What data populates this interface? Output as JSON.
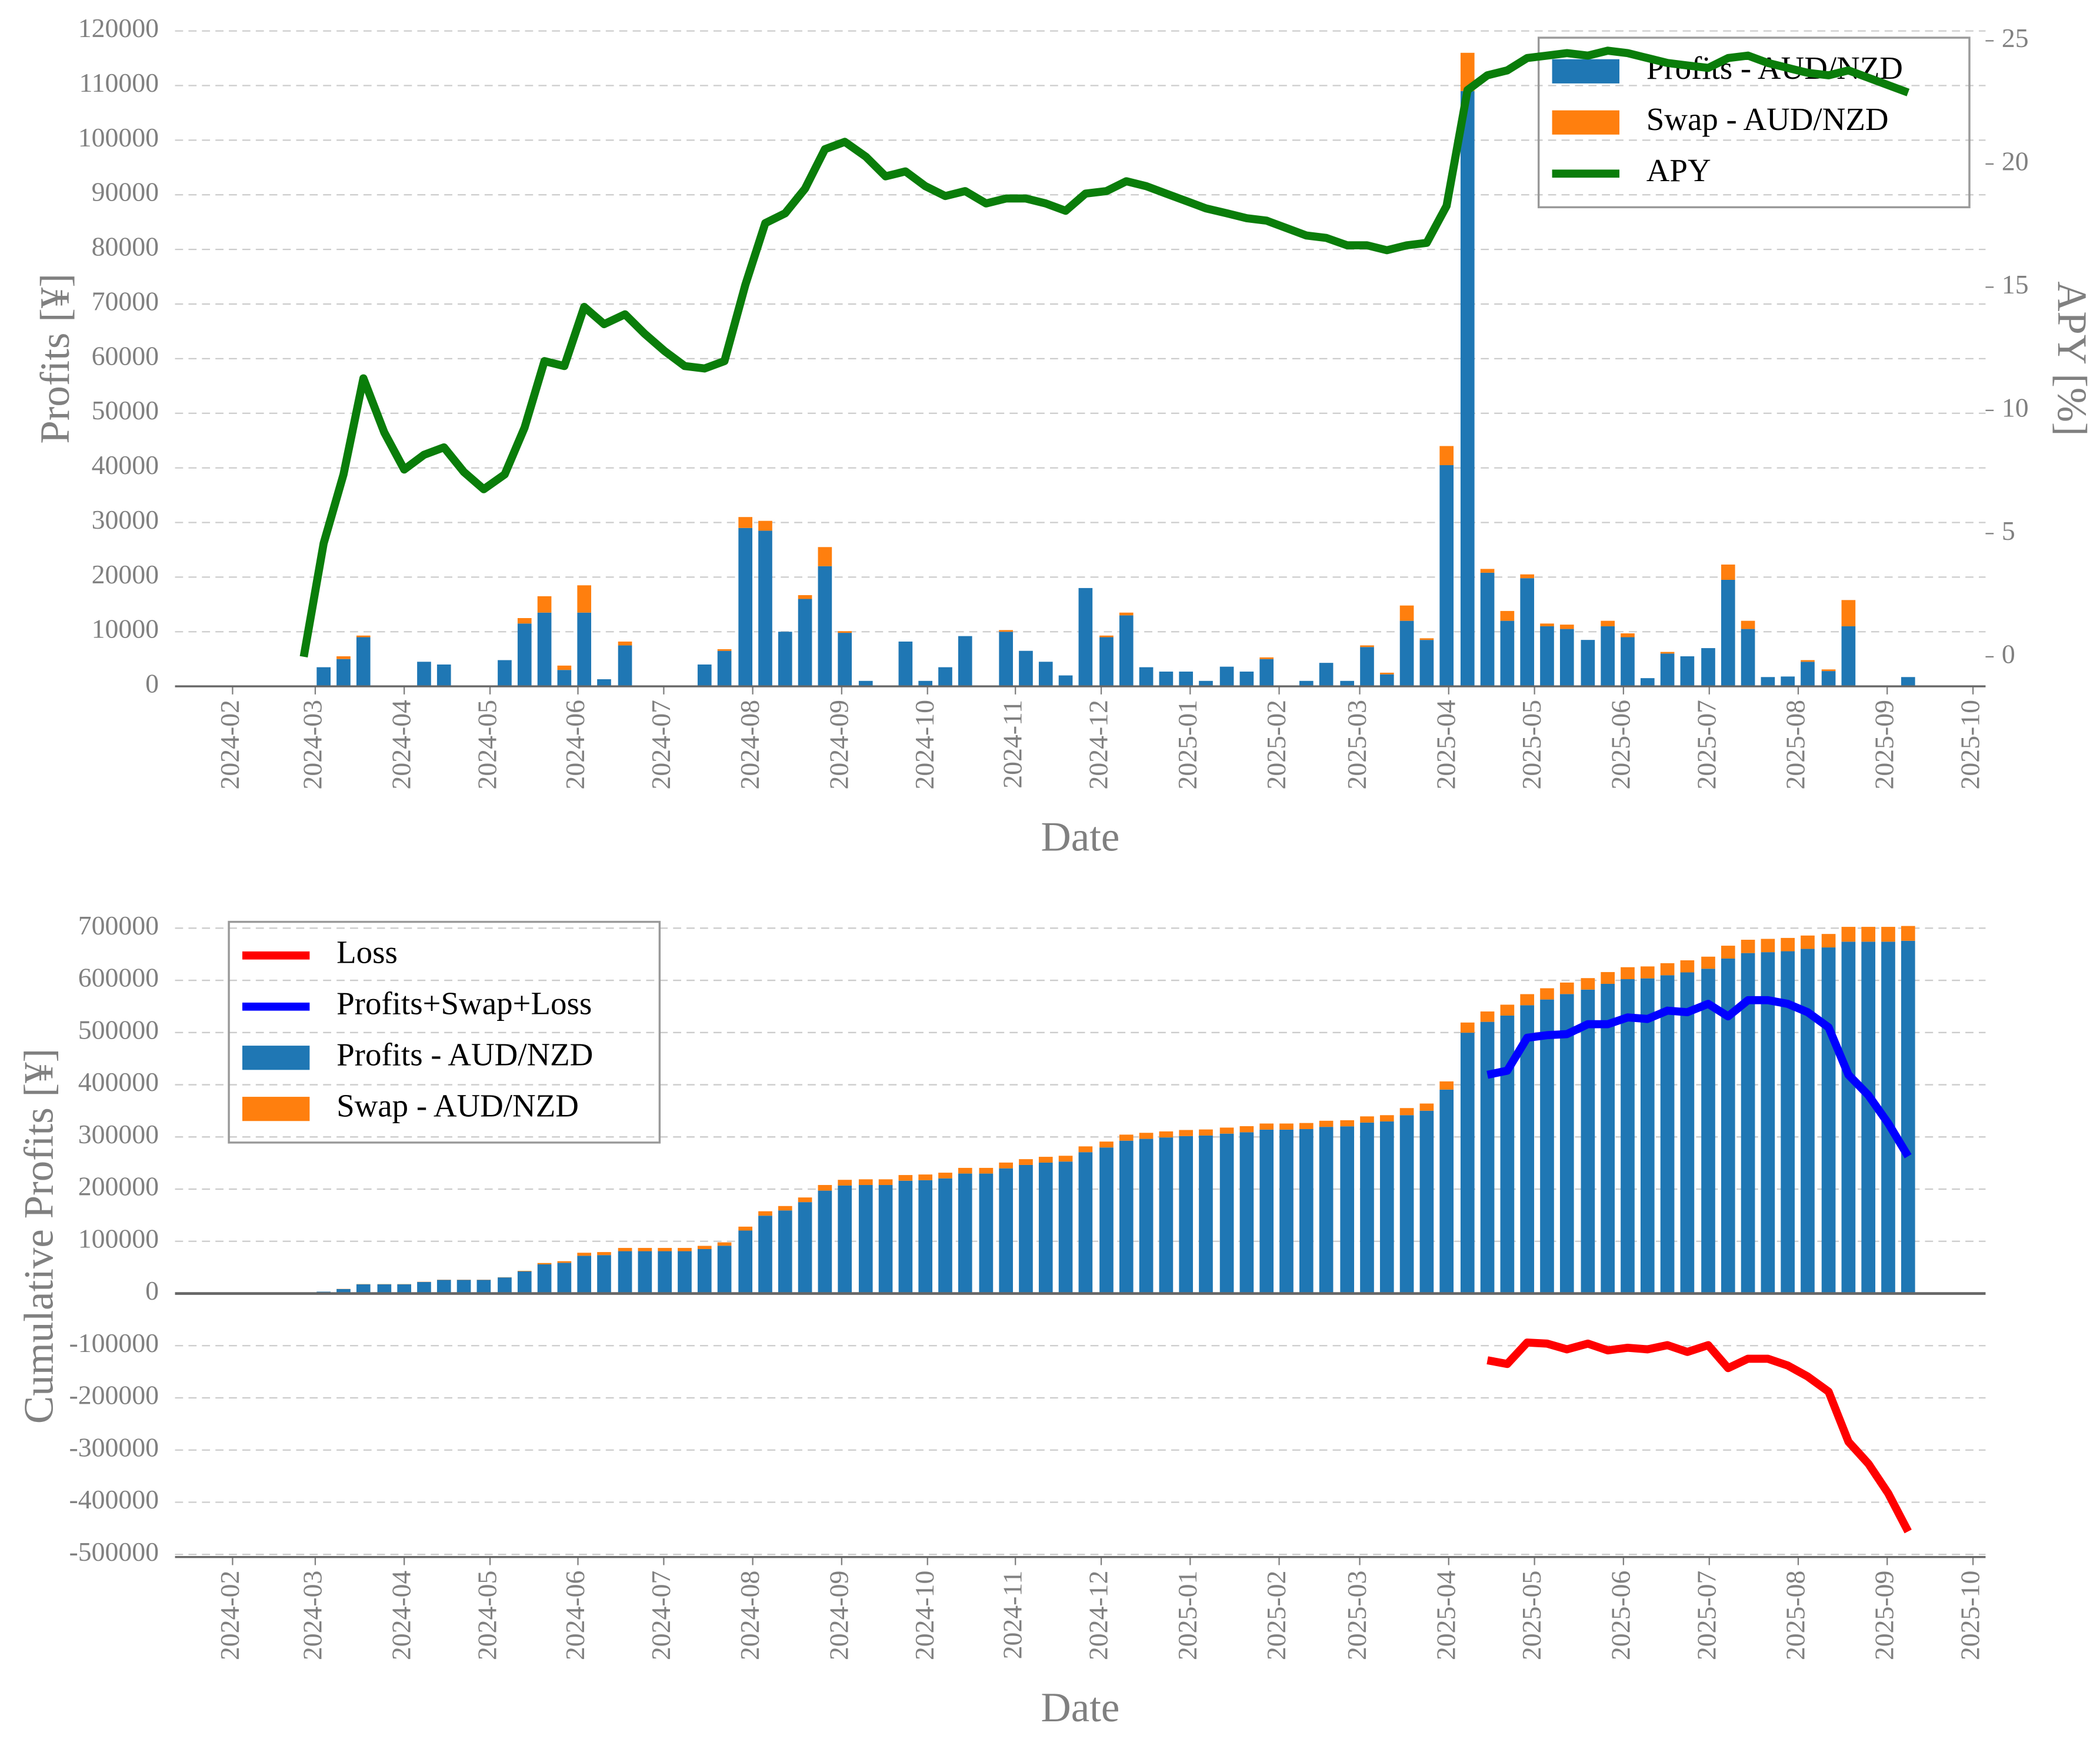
{
  "chart_data": [
    {
      "type": "bar",
      "stacked": true,
      "xlabel": "Date",
      "ylabel": "Profits [¥]",
      "y2label": "APY [%]",
      "x": [
        2024.153,
        2024.172,
        2024.191,
        2024.21,
        2024.23,
        2024.249,
        2024.268,
        2024.287,
        2024.306,
        2024.325,
        2024.345,
        2024.364,
        2024.383,
        2024.402,
        2024.421,
        2024.44,
        2024.46,
        2024.479,
        2024.498,
        2024.517,
        2024.536,
        2024.555,
        2024.575,
        2024.594,
        2024.613,
        2024.632,
        2024.651,
        2024.67,
        2024.69,
        2024.709,
        2024.728,
        2024.747,
        2024.766,
        2024.785,
        2024.805,
        2024.824,
        2024.843,
        2024.862,
        2024.881,
        2024.9,
        2024.92,
        2024.939,
        2024.958,
        2024.977,
        2024.996,
        2025.015,
        2025.035,
        2025.054,
        2025.073,
        2025.092,
        2025.111,
        2025.13,
        2025.15,
        2025.169,
        2025.188,
        2025.207,
        2025.226,
        2025.245,
        2025.265,
        2025.284,
        2025.303,
        2025.322,
        2025.341,
        2025.36,
        2025.38,
        2025.399,
        2025.418,
        2025.437,
        2025.456,
        2025.475,
        2025.495,
        2025.514,
        2025.533,
        2025.552,
        2025.571,
        2025.59,
        2025.61,
        2025.629,
        2025.648,
        2025.667,
        2025.686
      ],
      "series": [
        {
          "name": "Profits - AUD/NZD",
          "type": "bar",
          "color": "#1f77b4",
          "values": [
            0,
            3500,
            5000,
            9000,
            0,
            0,
            4500,
            4000,
            0,
            0,
            4800,
            11500,
            13500,
            3000,
            13500,
            1300,
            7500,
            0,
            0,
            0,
            4000,
            6500,
            29000,
            28500,
            10000,
            16000,
            22000,
            9800,
            1000,
            0,
            8200,
            1000,
            3500,
            9200,
            0,
            10000,
            6500,
            4500,
            2000,
            18000,
            9000,
            13000,
            3500,
            2700,
            2700,
            1000,
            3600,
            2700,
            5000,
            0,
            1000,
            4300,
            1000,
            7200,
            2200,
            12000,
            8500,
            40500,
            109000,
            20800,
            12000,
            19800,
            11000,
            10500,
            8500,
            11000,
            9000,
            1500,
            6000,
            5500,
            7000,
            19500,
            10500,
            1700,
            1800,
            4500,
            2800,
            11000,
            0,
            0,
            1700
          ]
        },
        {
          "name": "Swap - AUD/NZD",
          "type": "bar",
          "color": "#ff7f0e",
          "values": [
            0,
            0,
            500,
            300,
            0,
            0,
            0,
            0,
            0,
            0,
            0,
            1000,
            3000,
            800,
            5000,
            0,
            700,
            0,
            0,
            0,
            0,
            300,
            2000,
            1800,
            0,
            700,
            3500,
            300,
            0,
            0,
            0,
            0,
            0,
            0,
            0,
            300,
            0,
            0,
            0,
            0,
            300,
            500,
            0,
            0,
            0,
            0,
            0,
            0,
            300,
            0,
            0,
            0,
            0,
            300,
            300,
            2800,
            300,
            3500,
            7000,
            700,
            1800,
            700,
            500,
            800,
            0,
            1000,
            700,
            0,
            300,
            0,
            0,
            2800,
            1500,
            0,
            0,
            300,
            300,
            4800,
            0,
            0,
            0
          ]
        },
        {
          "name": "APY",
          "type": "line",
          "axis": "y2",
          "color": "#0a7d0a",
          "values": [
            0,
            4.6,
            7.4,
            11.3,
            9.1,
            7.6,
            8.2,
            8.5,
            7.5,
            6.8,
            7.4,
            9.3,
            12.0,
            11.8,
            14.2,
            13.5,
            13.9,
            13.1,
            12.4,
            11.8,
            11.7,
            12.0,
            15.1,
            17.6,
            18.0,
            19.0,
            20.6,
            20.9,
            20.3,
            19.5,
            19.7,
            19.1,
            18.7,
            18.9,
            18.4,
            18.6,
            18.6,
            18.4,
            18.1,
            18.8,
            18.9,
            19.3,
            19.1,
            18.8,
            18.5,
            18.2,
            18.0,
            17.8,
            17.7,
            17.4,
            17.1,
            17.0,
            16.7,
            16.7,
            16.5,
            16.7,
            16.8,
            18.3,
            23.0,
            23.6,
            23.8,
            24.3,
            24.4,
            24.5,
            24.4,
            24.6,
            24.5,
            24.3,
            24.1,
            24.0,
            23.9,
            24.3,
            24.4,
            24.1,
            23.9,
            23.7,
            23.6,
            23.8,
            23.5,
            23.2,
            22.9
          ]
        }
      ],
      "xlim": [
        2024.03,
        2025.76
      ],
      "xticks": [
        {
          "value": 2024.085,
          "label": "2024-02"
        },
        {
          "value": 2024.164,
          "label": "2024-03"
        },
        {
          "value": 2024.249,
          "label": "2024-04"
        },
        {
          "value": 2024.331,
          "label": "2024-05"
        },
        {
          "value": 2024.415,
          "label": "2024-06"
        },
        {
          "value": 2024.497,
          "label": "2024-07"
        },
        {
          "value": 2024.582,
          "label": "2024-08"
        },
        {
          "value": 2024.667,
          "label": "2024-09"
        },
        {
          "value": 2024.749,
          "label": "2024-10"
        },
        {
          "value": 2024.833,
          "label": "2024-11"
        },
        {
          "value": 2024.915,
          "label": "2024-12"
        },
        {
          "value": 2025.0,
          "label": "2025-01"
        },
        {
          "value": 2025.085,
          "label": "2025-02"
        },
        {
          "value": 2025.162,
          "label": "2025-03"
        },
        {
          "value": 2025.247,
          "label": "2025-04"
        },
        {
          "value": 2025.329,
          "label": "2025-05"
        },
        {
          "value": 2025.414,
          "label": "2025-06"
        },
        {
          "value": 2025.496,
          "label": "2025-07"
        },
        {
          "value": 2025.581,
          "label": "2025-08"
        },
        {
          "value": 2025.666,
          "label": "2025-09"
        },
        {
          "value": 2025.748,
          "label": "2025-10"
        }
      ],
      "ylim": [
        0,
        120000
      ],
      "yticks": [
        0,
        10000,
        20000,
        30000,
        40000,
        50000,
        60000,
        70000,
        80000,
        90000,
        100000,
        110000,
        120000
      ],
      "y2lim": [
        -1.2,
        25.4
      ],
      "y2ticks": [
        0,
        5,
        10,
        15,
        20,
        25
      ],
      "grid": true,
      "legend": "upper right"
    },
    {
      "type": "bar",
      "stacked": true,
      "xlabel": "Date",
      "ylabel": "Cumulative Profits [¥]",
      "x": [
        2024.153,
        2024.172,
        2024.191,
        2024.21,
        2024.23,
        2024.249,
        2024.268,
        2024.287,
        2024.306,
        2024.325,
        2024.345,
        2024.364,
        2024.383,
        2024.402,
        2024.421,
        2024.44,
        2024.46,
        2024.479,
        2024.498,
        2024.517,
        2024.536,
        2024.555,
        2024.575,
        2024.594,
        2024.613,
        2024.632,
        2024.651,
        2024.67,
        2024.69,
        2024.709,
        2024.728,
        2024.747,
        2024.766,
        2024.785,
        2024.805,
        2024.824,
        2024.843,
        2024.862,
        2024.881,
        2024.9,
        2024.92,
        2024.939,
        2024.958,
        2024.977,
        2024.996,
        2025.015,
        2025.035,
        2025.054,
        2025.073,
        2025.092,
        2025.111,
        2025.13,
        2025.15,
        2025.169,
        2025.188,
        2025.207,
        2025.226,
        2025.245,
        2025.265,
        2025.284,
        2025.303,
        2025.322,
        2025.341,
        2025.36,
        2025.38,
        2025.399,
        2025.418,
        2025.437,
        2025.456,
        2025.475,
        2025.495,
        2025.514,
        2025.533,
        2025.552,
        2025.571,
        2025.59,
        2025.61,
        2025.629,
        2025.648,
        2025.667,
        2025.686
      ],
      "series": [
        {
          "name": "Loss",
          "type": "line",
          "color": "#ff0000",
          "values": [
            null,
            null,
            null,
            null,
            null,
            null,
            null,
            null,
            null,
            null,
            null,
            null,
            null,
            null,
            null,
            null,
            null,
            null,
            null,
            null,
            null,
            null,
            null,
            null,
            null,
            null,
            null,
            null,
            null,
            null,
            null,
            null,
            null,
            null,
            null,
            null,
            null,
            null,
            null,
            null,
            null,
            null,
            null,
            null,
            null,
            null,
            null,
            null,
            null,
            null,
            null,
            null,
            null,
            null,
            null,
            null,
            null,
            null,
            null,
            -128000,
            -135000,
            -94000,
            -96000,
            -107000,
            -96000,
            -109000,
            -104000,
            -107000,
            -99000,
            -112000,
            -99000,
            -143000,
            -125000,
            -125000,
            -138000,
            -159000,
            -188000,
            -284000,
            -326000,
            -383000,
            -456000
          ]
        },
        {
          "name": "Profits+Swap+Loss",
          "type": "line",
          "color": "#0000ff",
          "values": [
            null,
            null,
            null,
            null,
            null,
            null,
            null,
            null,
            null,
            null,
            null,
            null,
            null,
            null,
            null,
            null,
            null,
            null,
            null,
            null,
            null,
            null,
            null,
            null,
            null,
            null,
            null,
            null,
            null,
            null,
            null,
            null,
            null,
            null,
            null,
            null,
            null,
            null,
            null,
            null,
            null,
            null,
            null,
            null,
            null,
            null,
            null,
            null,
            null,
            null,
            null,
            null,
            null,
            null,
            null,
            null,
            null,
            null,
            null,
            419000,
            427000,
            490000,
            495000,
            497000,
            516000,
            516000,
            529000,
            526000,
            542000,
            539000,
            555000,
            531000,
            562000,
            562000,
            555000,
            539000,
            510000,
            419000,
            380000,
            326000,
            263000
          ]
        },
        {
          "name": "Profits - AUD/NZD",
          "type": "bar",
          "color": "#1f77b4",
          "values": [
            0,
            3500,
            8500,
            17500,
            17500,
            17500,
            22000,
            26000,
            26000,
            26000,
            30800,
            42300,
            55800,
            58800,
            72300,
            73600,
            81100,
            81100,
            81100,
            81100,
            85100,
            91600,
            120600,
            149100,
            159100,
            175100,
            197100,
            206900,
            207900,
            207900,
            216100,
            217100,
            220600,
            229800,
            229800,
            239800,
            246300,
            250800,
            252800,
            270800,
            279800,
            292800,
            296300,
            299000,
            301700,
            302700,
            306300,
            309000,
            314000,
            314000,
            315000,
            319300,
            320300,
            327500,
            329700,
            341700,
            350200,
            390700,
            499700,
            520500,
            532500,
            552300,
            563300,
            573800,
            582300,
            593300,
            602300,
            603800,
            609800,
            615300,
            622300,
            641800,
            652300,
            654000,
            655800,
            660300,
            663100,
            674100,
            674100,
            674100,
            675800
          ]
        },
        {
          "name": "Swap - AUD/NZD",
          "type": "bar",
          "color": "#ff7f0e",
          "values": [
            0,
            0,
            300,
            400,
            400,
            400,
            400,
            400,
            400,
            400,
            400,
            1000,
            2600,
            3100,
            5800,
            5800,
            6200,
            6200,
            6200,
            6200,
            6200,
            6400,
            7500,
            8500,
            8500,
            8900,
            10800,
            10900,
            10900,
            10900,
            10900,
            10900,
            10900,
            10900,
            10900,
            11100,
            11100,
            11100,
            11100,
            11100,
            11300,
            11600,
            11600,
            11600,
            11600,
            11600,
            11600,
            11600,
            11700,
            11700,
            11700,
            11700,
            11700,
            11900,
            12000,
            13600,
            13800,
            15700,
            19500,
            19900,
            20900,
            21300,
            21600,
            22000,
            22000,
            22600,
            22900,
            22900,
            23100,
            23100,
            23100,
            24600,
            25500,
            25500,
            25500,
            25600,
            25800,
            28400,
            28400,
            28400,
            28400
          ]
        }
      ],
      "xlim": [
        2024.03,
        2025.76
      ],
      "xticks": [
        {
          "value": 2024.085,
          "label": "2024-02"
        },
        {
          "value": 2024.164,
          "label": "2024-03"
        },
        {
          "value": 2024.249,
          "label": "2024-04"
        },
        {
          "value": 2024.331,
          "label": "2024-05"
        },
        {
          "value": 2024.415,
          "label": "2024-06"
        },
        {
          "value": 2024.497,
          "label": "2024-07"
        },
        {
          "value": 2024.582,
          "label": "2024-08"
        },
        {
          "value": 2024.667,
          "label": "2024-09"
        },
        {
          "value": 2024.749,
          "label": "2024-10"
        },
        {
          "value": 2024.833,
          "label": "2024-11"
        },
        {
          "value": 2024.915,
          "label": "2024-12"
        },
        {
          "value": 2025.0,
          "label": "2025-01"
        },
        {
          "value": 2025.085,
          "label": "2025-02"
        },
        {
          "value": 2025.162,
          "label": "2025-03"
        },
        {
          "value": 2025.247,
          "label": "2025-04"
        },
        {
          "value": 2025.329,
          "label": "2025-05"
        },
        {
          "value": 2025.414,
          "label": "2025-06"
        },
        {
          "value": 2025.496,
          "label": "2025-07"
        },
        {
          "value": 2025.581,
          "label": "2025-08"
        },
        {
          "value": 2025.666,
          "label": "2025-09"
        },
        {
          "value": 2025.748,
          "label": "2025-10"
        }
      ],
      "ylim": [
        -505000,
        725000
      ],
      "yticks": [
        -500000,
        -400000,
        -300000,
        -200000,
        -100000,
        0,
        100000,
        200000,
        300000,
        400000,
        500000,
        600000,
        700000
      ],
      "grid": true,
      "legend": "upper left"
    }
  ]
}
